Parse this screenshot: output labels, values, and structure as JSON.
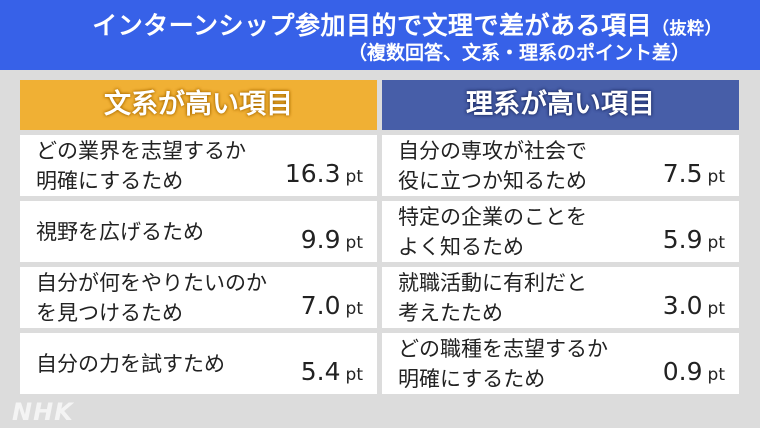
{
  "header": {
    "title": "インターンシップ参加目的で文理で差がある項目",
    "title_note": "（抜粋）",
    "subtitle": "（複数回答、文系・理系のポイント差）",
    "background_color": "#3761e8"
  },
  "columns": [
    {
      "heading": "文系が高い項目",
      "color": "#f0b034",
      "items": [
        {
          "label": "どの業界を志望するか\n明確にするため",
          "value": "16.3",
          "unit": "pt"
        },
        {
          "label": "視野を広げるため",
          "value": "9.9",
          "unit": "pt"
        },
        {
          "label": "自分が何をやりたいのか\nを見つけるため",
          "value": "7.0",
          "unit": "pt"
        },
        {
          "label": "自分の力を試すため",
          "value": "5.4",
          "unit": "pt"
        }
      ]
    },
    {
      "heading": "理系が高い項目",
      "color": "#475ea8",
      "items": [
        {
          "label": "自分の専攻が社会で\n役に立つか知るため",
          "value": "7.5",
          "unit": "pt"
        },
        {
          "label": "特定の企業のことを\nよく知るため",
          "value": "5.9",
          "unit": "pt"
        },
        {
          "label": "就職活動に有利だと\n考えたため",
          "value": "3.0",
          "unit": "pt"
        },
        {
          "label": "どの職種を志望するか\n明確にするため",
          "value": "0.9",
          "unit": "pt"
        }
      ]
    }
  ],
  "logo": "NHK"
}
